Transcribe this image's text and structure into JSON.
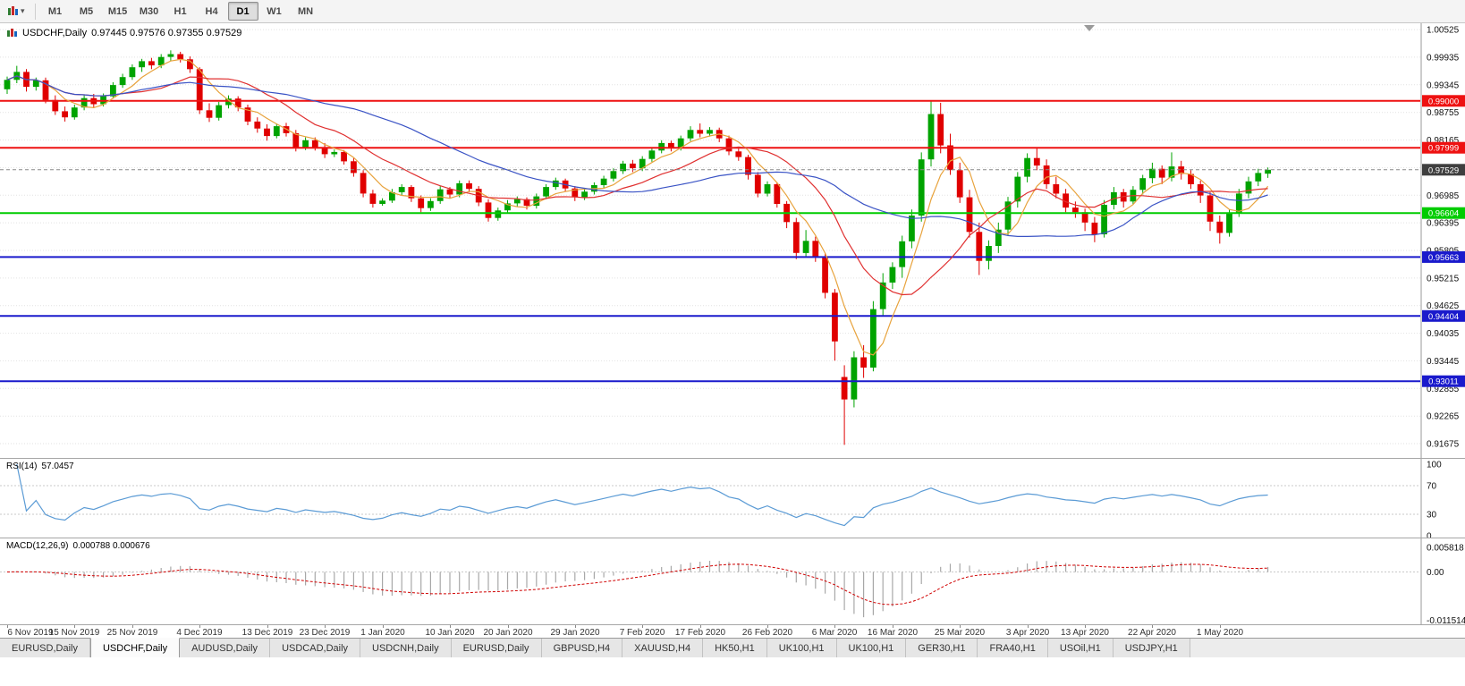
{
  "toolbar": {
    "caret": "▾",
    "timeframes": [
      "M1",
      "M5",
      "M15",
      "M30",
      "H1",
      "H4",
      "D1",
      "W1",
      "MN"
    ],
    "active_timeframe": "D1"
  },
  "chart": {
    "title": "USDCHF,Daily",
    "ohlc": "0.97445 0.97576 0.97355 0.97529",
    "open": "0.97445",
    "high": "0.97576",
    "low": "0.97355",
    "close": "0.97529",
    "current_price": "0.97529",
    "price_scale": [
      "1.00525",
      "0.99935",
      "0.99345",
      "0.98755",
      "0.98165",
      "0.97575",
      "0.96985",
      "0.96395",
      "0.95805",
      "0.95215",
      "0.94625",
      "0.94035",
      "0.93445",
      "0.92855",
      "0.92265",
      "0.91675"
    ],
    "hlines": [
      {
        "price": 0.99,
        "label": "0.99000",
        "color": "#ee1111"
      },
      {
        "price": 0.97999,
        "label": "0.97999",
        "color": "#ee1111"
      },
      {
        "price": 0.96604,
        "label": "0.96604",
        "color": "#00cc00"
      },
      {
        "price": 0.95663,
        "label": "0.95663",
        "color": "#1a1acc"
      },
      {
        "price": 0.94404,
        "label": "0.94404",
        "color": "#1a1acc"
      },
      {
        "price": 0.93011,
        "label": "0.93011",
        "color": "#1a1acc"
      }
    ],
    "date_labels": [
      {
        "i": 0,
        "t": "6 Nov 2019"
      },
      {
        "i": 7,
        "t": "15 Nov 2019"
      },
      {
        "i": 13,
        "t": "25 Nov 2019"
      },
      {
        "i": 20,
        "t": "4 Dec 2019"
      },
      {
        "i": 27,
        "t": "13 Dec 2019"
      },
      {
        "i": 33,
        "t": "23 Dec 2019"
      },
      {
        "i": 39,
        "t": "1 Jan 2020"
      },
      {
        "i": 46,
        "t": "10 Jan 2020"
      },
      {
        "i": 52,
        "t": "20 Jan 2020"
      },
      {
        "i": 59,
        "t": "29 Jan 2020"
      },
      {
        "i": 66,
        "t": "7 Feb 2020"
      },
      {
        "i": 72,
        "t": "17 Feb 2020"
      },
      {
        "i": 79,
        "t": "26 Feb 2020"
      },
      {
        "i": 86,
        "t": "6 Mar 2020"
      },
      {
        "i": 92,
        "t": "16 Mar 2020"
      },
      {
        "i": 99,
        "t": "25 Mar 2020"
      },
      {
        "i": 106,
        "t": "3 Apr 2020"
      },
      {
        "i": 112,
        "t": "13 Apr 2020"
      },
      {
        "i": 119,
        "t": "22 Apr 2020"
      },
      {
        "i": 126,
        "t": "1 May 2020"
      }
    ],
    "candles": [
      [
        0.9925,
        0.9952,
        0.9915,
        0.9945
      ],
      [
        0.9945,
        0.9975,
        0.9938,
        0.9962
      ],
      [
        0.9962,
        0.9968,
        0.992,
        0.993
      ],
      [
        0.993,
        0.995,
        0.9922,
        0.9944
      ],
      [
        0.9944,
        0.995,
        0.9895,
        0.9902
      ],
      [
        0.9902,
        0.9912,
        0.987,
        0.9878
      ],
      [
        0.9878,
        0.9888,
        0.9856,
        0.9865
      ],
      [
        0.9865,
        0.9892,
        0.986,
        0.9886
      ],
      [
        0.9886,
        0.9912,
        0.988,
        0.9906
      ],
      [
        0.9906,
        0.9915,
        0.9885,
        0.9893
      ],
      [
        0.9893,
        0.9916,
        0.9888,
        0.991
      ],
      [
        0.991,
        0.994,
        0.9905,
        0.9934
      ],
      [
        0.9934,
        0.9958,
        0.9928,
        0.9951
      ],
      [
        0.9951,
        0.9978,
        0.9945,
        0.9972
      ],
      [
        0.9972,
        0.999,
        0.9962,
        0.9985
      ],
      [
        0.9985,
        0.9992,
        0.9968,
        0.9976
      ],
      [
        0.9976,
        1.0,
        0.997,
        0.9994
      ],
      [
        0.9994,
        1.0008,
        0.9985,
        1.0
      ],
      [
        1.0,
        1.0005,
        0.9982,
        0.9989
      ],
      [
        0.9989,
        0.9995,
        0.996,
        0.9968
      ],
      [
        0.9968,
        0.9972,
        0.9872,
        0.988
      ],
      [
        0.988,
        0.9895,
        0.9855,
        0.9864
      ],
      [
        0.9864,
        0.9898,
        0.9858,
        0.9891
      ],
      [
        0.9891,
        0.9912,
        0.9884,
        0.9905
      ],
      [
        0.9905,
        0.991,
        0.9878,
        0.9886
      ],
      [
        0.9886,
        0.9892,
        0.9848,
        0.9856
      ],
      [
        0.9856,
        0.9865,
        0.9832,
        0.9841
      ],
      [
        0.9841,
        0.985,
        0.9815,
        0.9825
      ],
      [
        0.9825,
        0.9852,
        0.982,
        0.9846
      ],
      [
        0.9846,
        0.9853,
        0.9824,
        0.9831
      ],
      [
        0.9831,
        0.9838,
        0.9792,
        0.98
      ],
      [
        0.98,
        0.9822,
        0.9795,
        0.9816
      ],
      [
        0.9816,
        0.9822,
        0.9794,
        0.9801
      ],
      [
        0.9801,
        0.981,
        0.9778,
        0.9786
      ],
      [
        0.9786,
        0.9796,
        0.978,
        0.9791
      ],
      [
        0.9791,
        0.9795,
        0.9764,
        0.9771
      ],
      [
        0.9771,
        0.9778,
        0.9738,
        0.9746
      ],
      [
        0.9746,
        0.9752,
        0.9694,
        0.9702
      ],
      [
        0.9702,
        0.971,
        0.9672,
        0.968
      ],
      [
        0.968,
        0.9692,
        0.9676,
        0.9687
      ],
      [
        0.9687,
        0.9712,
        0.9682,
        0.9705
      ],
      [
        0.9705,
        0.9722,
        0.9698,
        0.9716
      ],
      [
        0.9716,
        0.972,
        0.9684,
        0.9692
      ],
      [
        0.9692,
        0.9698,
        0.9662,
        0.9671
      ],
      [
        0.9671,
        0.9692,
        0.9665,
        0.9686
      ],
      [
        0.9686,
        0.9718,
        0.968,
        0.9711
      ],
      [
        0.9711,
        0.9716,
        0.9692,
        0.97
      ],
      [
        0.97,
        0.973,
        0.9694,
        0.9724
      ],
      [
        0.9724,
        0.973,
        0.9705,
        0.9712
      ],
      [
        0.9712,
        0.9718,
        0.9675,
        0.9683
      ],
      [
        0.9683,
        0.969,
        0.9642,
        0.965
      ],
      [
        0.965,
        0.9672,
        0.9644,
        0.9666
      ],
      [
        0.9666,
        0.9688,
        0.966,
        0.9681
      ],
      [
        0.9681,
        0.9696,
        0.9674,
        0.969
      ],
      [
        0.969,
        0.9694,
        0.9668,
        0.9676
      ],
      [
        0.9676,
        0.9702,
        0.967,
        0.9696
      ],
      [
        0.9696,
        0.9722,
        0.969,
        0.9716
      ],
      [
        0.9716,
        0.9736,
        0.971,
        0.973
      ],
      [
        0.973,
        0.9734,
        0.9706,
        0.9713
      ],
      [
        0.9713,
        0.9718,
        0.9686,
        0.9694
      ],
      [
        0.9694,
        0.9712,
        0.9688,
        0.9706
      ],
      [
        0.9706,
        0.9726,
        0.97,
        0.972
      ],
      [
        0.972,
        0.974,
        0.9714,
        0.9734
      ],
      [
        0.9734,
        0.9756,
        0.9728,
        0.975
      ],
      [
        0.975,
        0.9772,
        0.9744,
        0.9766
      ],
      [
        0.9766,
        0.9774,
        0.9748,
        0.9756
      ],
      [
        0.9756,
        0.9782,
        0.975,
        0.9776
      ],
      [
        0.9776,
        0.98,
        0.977,
        0.9794
      ],
      [
        0.9794,
        0.9816,
        0.9788,
        0.981
      ],
      [
        0.981,
        0.9815,
        0.9792,
        0.98
      ],
      [
        0.98,
        0.9826,
        0.9794,
        0.982
      ],
      [
        0.982,
        0.9846,
        0.9814,
        0.9838
      ],
      [
        0.9838,
        0.9852,
        0.9822,
        0.983
      ],
      [
        0.983,
        0.9844,
        0.9824,
        0.9838
      ],
      [
        0.9838,
        0.9843,
        0.9812,
        0.982
      ],
      [
        0.982,
        0.9826,
        0.9784,
        0.9792
      ],
      [
        0.9792,
        0.9798,
        0.9772,
        0.978
      ],
      [
        0.978,
        0.9785,
        0.9732,
        0.9742
      ],
      [
        0.9742,
        0.9748,
        0.9694,
        0.9702
      ],
      [
        0.9702,
        0.9728,
        0.9696,
        0.9722
      ],
      [
        0.9722,
        0.9726,
        0.9672,
        0.968
      ],
      [
        0.968,
        0.9686,
        0.9628,
        0.9641
      ],
      [
        0.9641,
        0.965,
        0.9562,
        0.9575
      ],
      [
        0.9575,
        0.9624,
        0.9568,
        0.9601
      ],
      [
        0.9601,
        0.961,
        0.9556,
        0.9566
      ],
      [
        0.9566,
        0.9575,
        0.9478,
        0.949
      ],
      [
        0.949,
        0.9498,
        0.9345,
        0.9386
      ],
      [
        0.931,
        0.9335,
        0.9165,
        0.9262
      ],
      [
        0.9262,
        0.9365,
        0.9245,
        0.9352
      ],
      [
        0.9352,
        0.9378,
        0.9308,
        0.933
      ],
      [
        0.933,
        0.9472,
        0.9322,
        0.9455
      ],
      [
        0.9455,
        0.9532,
        0.944,
        0.9512
      ],
      [
        0.9512,
        0.9555,
        0.9498,
        0.9545
      ],
      [
        0.9545,
        0.9612,
        0.9522,
        0.96
      ],
      [
        0.96,
        0.9668,
        0.9585,
        0.9655
      ],
      [
        0.9655,
        0.979,
        0.9642,
        0.9775
      ],
      [
        0.9775,
        0.9901,
        0.976,
        0.9872
      ],
      [
        0.9872,
        0.9896,
        0.9788,
        0.9805
      ],
      [
        0.9805,
        0.983,
        0.9742,
        0.9752
      ],
      [
        0.9752,
        0.9768,
        0.9682,
        0.9694
      ],
      [
        0.9694,
        0.971,
        0.9608,
        0.962
      ],
      [
        0.962,
        0.964,
        0.9528,
        0.9558
      ],
      [
        0.9558,
        0.9602,
        0.954,
        0.959
      ],
      [
        0.959,
        0.964,
        0.9575,
        0.9625
      ],
      [
        0.9625,
        0.9695,
        0.9612,
        0.9685
      ],
      [
        0.9685,
        0.9748,
        0.9672,
        0.9738
      ],
      [
        0.9738,
        0.9788,
        0.9726,
        0.9778
      ],
      [
        0.9778,
        0.98,
        0.9752,
        0.9762
      ],
      [
        0.9762,
        0.9775,
        0.9712,
        0.9722
      ],
      [
        0.9722,
        0.9738,
        0.9692,
        0.9702
      ],
      [
        0.9702,
        0.9712,
        0.9662,
        0.9672
      ],
      [
        0.9672,
        0.9685,
        0.965,
        0.9662
      ],
      [
        0.9662,
        0.967,
        0.9622,
        0.964
      ],
      [
        0.964,
        0.9652,
        0.9598,
        0.9615
      ],
      [
        0.9615,
        0.9688,
        0.9608,
        0.9678
      ],
      [
        0.9678,
        0.9716,
        0.9668,
        0.9705
      ],
      [
        0.9705,
        0.9712,
        0.9672,
        0.9685
      ],
      [
        0.9685,
        0.9718,
        0.9678,
        0.971
      ],
      [
        0.971,
        0.9742,
        0.97,
        0.9735
      ],
      [
        0.9735,
        0.9768,
        0.9724,
        0.9755
      ],
      [
        0.9755,
        0.9762,
        0.9722,
        0.9736
      ],
      [
        0.9736,
        0.979,
        0.9728,
        0.976
      ],
      [
        0.976,
        0.9772,
        0.9732,
        0.9744
      ],
      [
        0.9744,
        0.9752,
        0.9712,
        0.9722
      ],
      [
        0.9722,
        0.973,
        0.9682,
        0.9698
      ],
      [
        0.9698,
        0.9705,
        0.9622,
        0.9642
      ],
      [
        0.9642,
        0.9655,
        0.9595,
        0.9618
      ],
      [
        0.9618,
        0.9668,
        0.961,
        0.966
      ],
      [
        0.966,
        0.9712,
        0.9652,
        0.9702
      ],
      [
        0.9702,
        0.9738,
        0.9692,
        0.9728
      ],
      [
        0.9728,
        0.9755,
        0.9718,
        0.9746
      ],
      [
        0.97445,
        0.97576,
        0.97355,
        0.97529
      ]
    ]
  },
  "rsi": {
    "label": "RSI(14)",
    "value": "57.0457",
    "scale": [
      {
        "t": "100",
        "v": 100
      },
      {
        "t": "70",
        "v": 70
      },
      {
        "t": "30",
        "v": 30
      },
      {
        "t": "0",
        "v": 0
      }
    ],
    "levels": [
      70,
      30
    ]
  },
  "macd": {
    "label": "MACD(12,26,9)",
    "values": "0.000788 0.000676",
    "scale": [
      {
        "t": "0.005818",
        "v": 0.005818
      },
      {
        "t": "0.00",
        "v": 0
      },
      {
        "t": "-0.011514",
        "v": -0.011514
      }
    ]
  },
  "tabs": [
    {
      "label": "EURUSD,Daily",
      "active": false
    },
    {
      "label": "USDCHF,Daily",
      "active": true
    },
    {
      "label": "AUDUSD,Daily",
      "active": false
    },
    {
      "label": "USDCAD,Daily",
      "active": false
    },
    {
      "label": "USDCNH,Daily",
      "active": false
    },
    {
      "label": "EURUSD,Daily",
      "active": false
    },
    {
      "label": "GBPUSD,H4",
      "active": false
    },
    {
      "label": "XAUUSD,H4",
      "active": false
    },
    {
      "label": "HK50,H1",
      "active": false
    },
    {
      "label": "UK100,H1",
      "active": false
    },
    {
      "label": "UK100,H1",
      "active": false
    },
    {
      "label": "GER30,H1",
      "active": false
    },
    {
      "label": "FRA40,H1",
      "active": false
    },
    {
      "label": "USOil,H1",
      "active": false
    },
    {
      "label": "USDJPY,H1",
      "active": false
    }
  ],
  "colors": {
    "bull": "#00a300",
    "bear": "#e00000",
    "ma_fast": "#e8a33d",
    "ma_mid": "#e03030",
    "ma_slow": "#3a53c5",
    "rsi_line": "#5b9bd5",
    "macd_hist": "#a8a8a8",
    "macd_signal": "#d00000",
    "grid": "#e2e2e2",
    "current_price_bg": "#3f3f3f"
  }
}
